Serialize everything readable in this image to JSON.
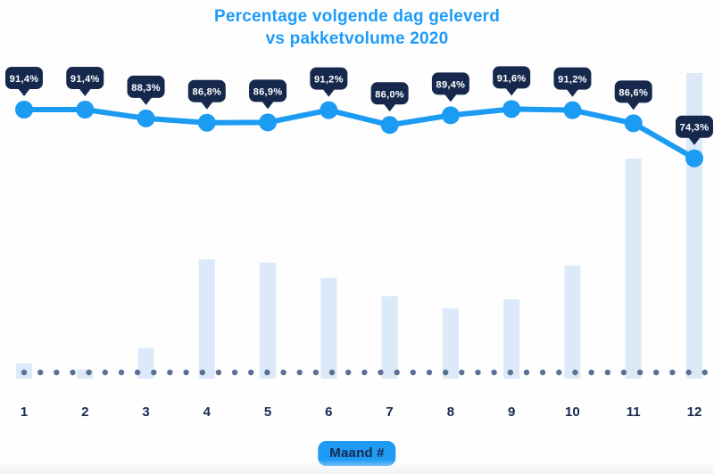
{
  "title": {
    "line1": "Percentage volgende dag geleverd",
    "line2": "vs pakketvolume 2020"
  },
  "x_axis": {
    "badge_label": "Maand #"
  },
  "chart_data": {
    "type": "combo",
    "title": "Percentage volgende dag geleverd vs pakketvolume 2020",
    "xlabel": "Maand #",
    "categories": [
      "1",
      "2",
      "3",
      "4",
      "5",
      "6",
      "7",
      "8",
      "9",
      "10",
      "11",
      "12"
    ],
    "series": [
      {
        "name": "Percentage volgende dag geleverd",
        "type": "line",
        "unit": "%",
        "values": [
          91.4,
          91.4,
          88.3,
          86.8,
          86.9,
          91.2,
          86.0,
          89.4,
          91.6,
          91.2,
          86.6,
          74.3
        ],
        "point_labels": [
          "91,4%",
          "91,4%",
          "88,3%",
          "86,8%",
          "86,9%",
          "91,2%",
          "86,0%",
          "89,4%",
          "91,6%",
          "91,2%",
          "86,6%",
          "74,3%"
        ]
      },
      {
        "name": "Pakketvolume 2020",
        "type": "bar",
        "unit": "relative volume index (max month = 100)",
        "values": [
          5,
          3,
          10,
          39,
          38,
          33,
          27,
          23,
          26,
          37,
          72,
          100
        ]
      }
    ],
    "grid": false,
    "legend_position": "none",
    "baseline_style": "dotted"
  },
  "colors": {
    "accent_blue": "#1c9bf3",
    "title_blue": "#1d9bf8",
    "navy": "#16294d",
    "bar_fill": "#dbe9f8",
    "dot_gray": "#5b7194",
    "tooltip_text": "#ffffff",
    "background": "#fefefe"
  }
}
